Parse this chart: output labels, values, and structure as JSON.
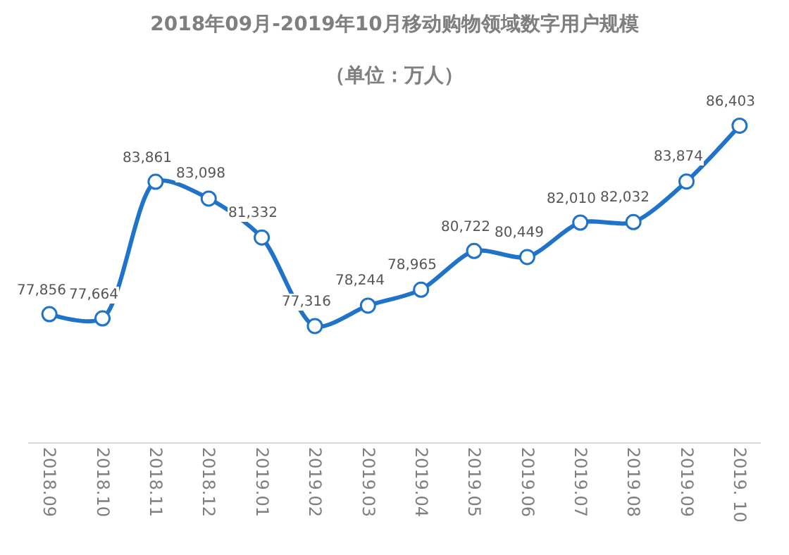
{
  "chart_data": {
    "type": "line",
    "title": "2018年09月-2019年10月移动购物领域数字用户规模",
    "subtitle": "（单位：万人）",
    "categories": [
      "2018.09",
      "2018.10",
      "2018.11",
      "2018.12",
      "2019.01",
      "2019.02",
      "2019.03",
      "2019.04",
      "2019.05",
      "2019.06",
      "2019.07",
      "2019.08",
      "2019.09",
      "2019. 10"
    ],
    "series": [
      {
        "color": "#1f74c9",
        "values": [
          77856,
          77664,
          83861,
          83098,
          81332,
          77316,
          78244,
          78965,
          80722,
          80449,
          82010,
          82032,
          83874,
          86403
        ],
        "value_labels": [
          "77,856",
          "77,664",
          "83,861",
          "83,098",
          "81,332",
          "77,316",
          "78,244",
          "78,965",
          "80,722",
          "80,449",
          "82,010",
          "82,032",
          "83,874",
          "86,403"
        ]
      }
    ],
    "marker": "circle",
    "grid": false,
    "legend": false
  }
}
